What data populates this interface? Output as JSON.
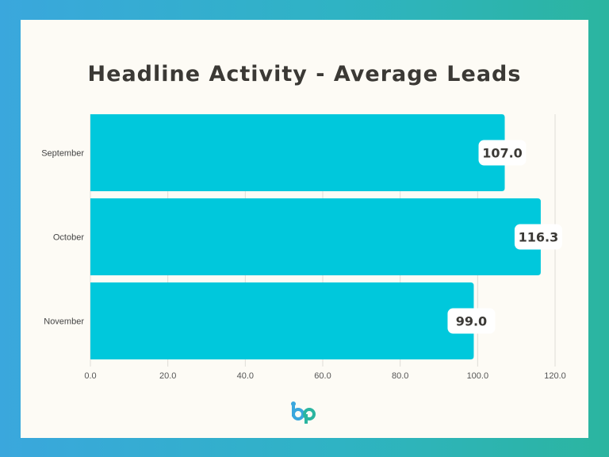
{
  "title": "Headline Activity - Average Leads",
  "colors": {
    "bar": "#00c8dc",
    "grid": "#dedcd6",
    "text": "#3b3935",
    "label_bg": "#ffffff"
  },
  "logo": {
    "icon": "bp-logo-icon",
    "text": "bp"
  },
  "chart_data": {
    "type": "bar",
    "orientation": "horizontal",
    "title": "Headline Activity - Average Leads",
    "categories": [
      "September",
      "October",
      "November"
    ],
    "values": [
      107.0,
      116.3,
      99.0
    ],
    "value_labels": [
      "107.0",
      "116.3",
      "99.0"
    ],
    "xlim": [
      0,
      120
    ],
    "xticks": [
      "0.0",
      "20.0",
      "40.0",
      "60.0",
      "80.0",
      "100.0",
      "120.0"
    ],
    "xlabel": "",
    "ylabel": "",
    "grid": true,
    "legend": "none"
  }
}
